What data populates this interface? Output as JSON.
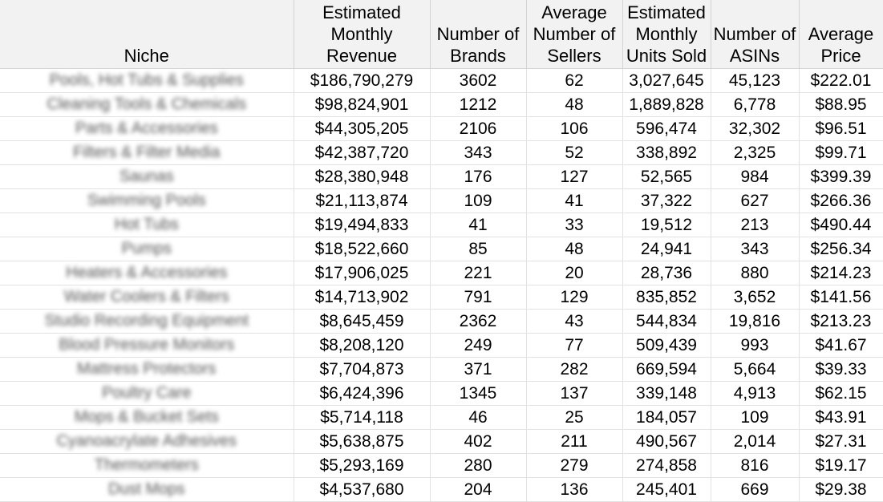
{
  "table": {
    "headers": [
      {
        "key": "niche",
        "lines": [
          "Niche"
        ]
      },
      {
        "key": "revenue",
        "lines": [
          "Estimated",
          "Monthly",
          "Revenue"
        ]
      },
      {
        "key": "brands",
        "lines": [
          "Number of",
          "Brands"
        ]
      },
      {
        "key": "sellers",
        "lines": [
          "Average",
          "Number of",
          "Sellers"
        ]
      },
      {
        "key": "units",
        "lines": [
          "Estimated",
          "Monthly",
          "Units Sold"
        ]
      },
      {
        "key": "asins",
        "lines": [
          "Number of",
          "ASINs"
        ]
      },
      {
        "key": "price",
        "lines": [
          "Average",
          "Price"
        ]
      }
    ],
    "rows": [
      [
        "Pools, Hot Tubs & Supplies",
        "$186,790,279",
        "3602",
        "62",
        "3,027,645",
        "45,123",
        "$222.01"
      ],
      [
        "Cleaning Tools & Chemicals",
        "$98,824,901",
        "1212",
        "48",
        "1,889,828",
        "6,778",
        "$88.95"
      ],
      [
        "Parts & Accessories",
        "$44,305,205",
        "2106",
        "106",
        "596,474",
        "32,302",
        "$96.51"
      ],
      [
        "Filters & Filter Media",
        "$42,387,720",
        "343",
        "52",
        "338,892",
        "2,325",
        "$99.71"
      ],
      [
        "Saunas",
        "$28,380,948",
        "176",
        "127",
        "52,565",
        "984",
        "$399.39"
      ],
      [
        "Swimming Pools",
        "$21,113,874",
        "109",
        "41",
        "37,322",
        "627",
        "$266.36"
      ],
      [
        "Hot Tubs",
        "$19,494,833",
        "41",
        "33",
        "19,512",
        "213",
        "$490.44"
      ],
      [
        "Pumps",
        "$18,522,660",
        "85",
        "48",
        "24,941",
        "343",
        "$256.34"
      ],
      [
        "Heaters & Accessories",
        "$17,906,025",
        "221",
        "20",
        "28,736",
        "880",
        "$214.23"
      ],
      [
        "Water Coolers & Filters",
        "$14,713,902",
        "791",
        "129",
        "835,852",
        "3,652",
        "$141.56"
      ],
      [
        "Studio Recording Equipment",
        "$8,645,459",
        "2362",
        "43",
        "544,834",
        "19,816",
        "$213.23"
      ],
      [
        "Blood Pressure Monitors",
        "$8,208,120",
        "249",
        "77",
        "509,439",
        "993",
        "$41.67"
      ],
      [
        "Mattress Protectors",
        "$7,704,873",
        "371",
        "282",
        "669,594",
        "5,664",
        "$39.33"
      ],
      [
        "Poultry Care",
        "$6,424,396",
        "1345",
        "137",
        "339,148",
        "4,913",
        "$62.15"
      ],
      [
        "Mops & Bucket Sets",
        "$5,714,118",
        "46",
        "25",
        "184,057",
        "109",
        "$43.91"
      ],
      [
        "Cyanoacrylate Adhesives",
        "$5,638,875",
        "402",
        "211",
        "490,567",
        "2,014",
        "$27.31"
      ],
      [
        "Thermometers",
        "$5,293,169",
        "280",
        "279",
        "274,858",
        "816",
        "$19.17"
      ],
      [
        "Dust Mops",
        "$4,537,680",
        "204",
        "136",
        "245,401",
        "669",
        "$29.38"
      ]
    ]
  }
}
